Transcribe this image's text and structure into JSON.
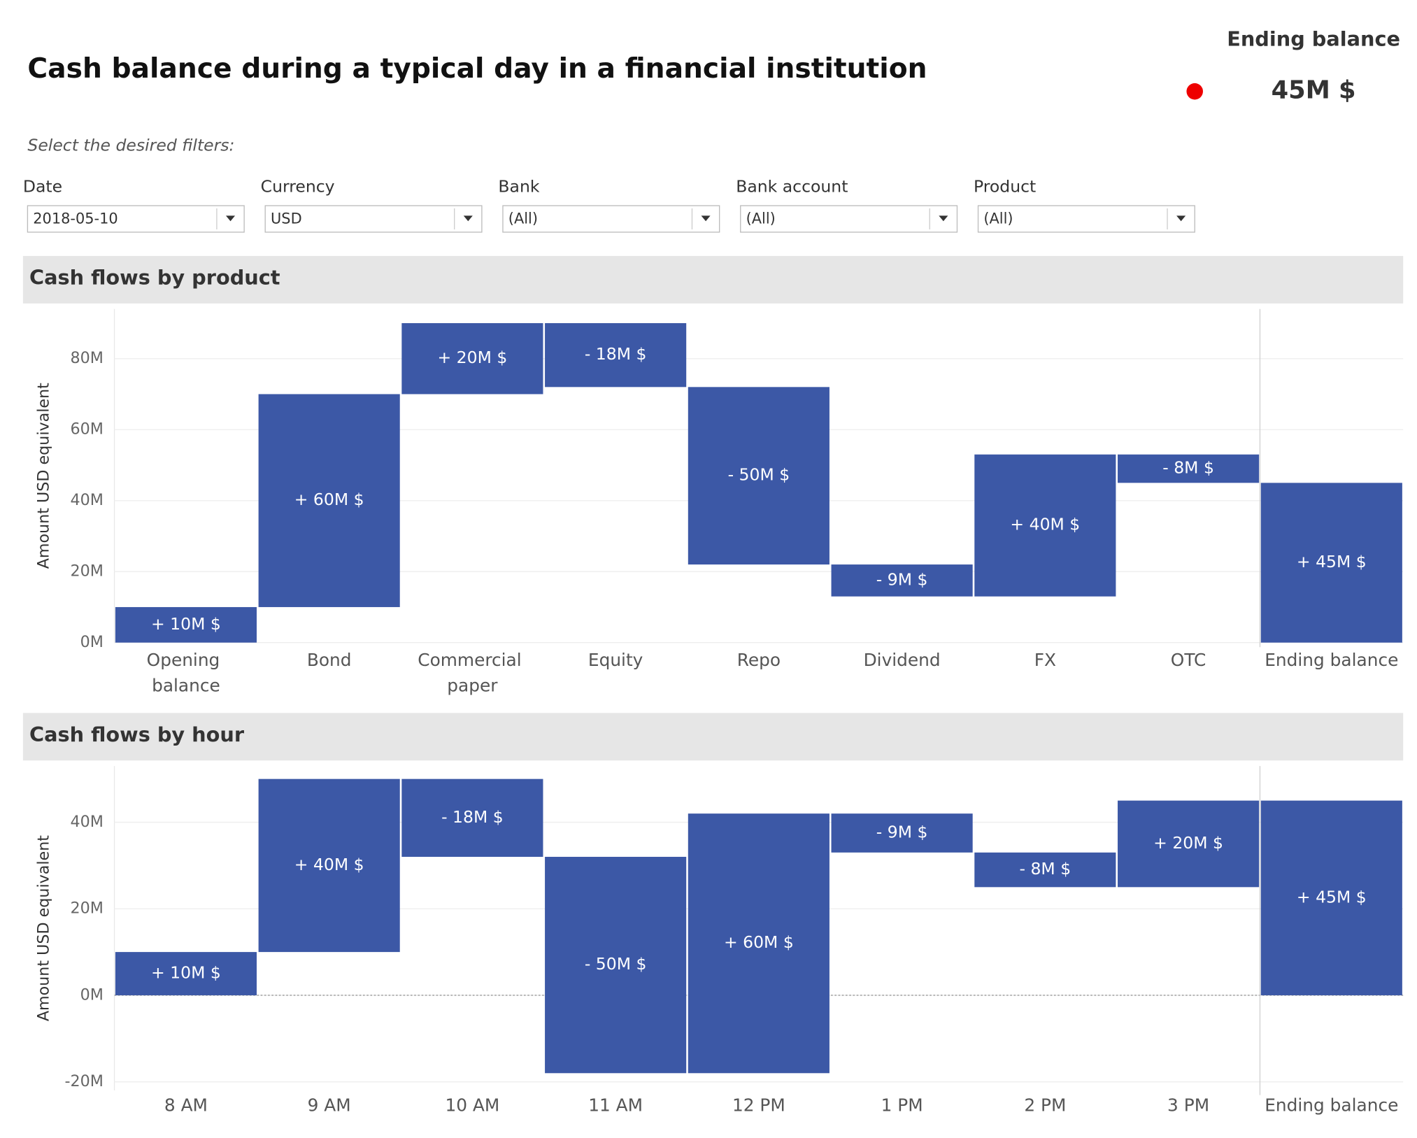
{
  "title": "Cash balance during a typical day in a financial institution",
  "kpi": {
    "label": "Ending balance",
    "value": "45M $"
  },
  "filters": {
    "prompt": "Select the desired filters:",
    "items": [
      {
        "label": "Date",
        "value": "2018-05-10"
      },
      {
        "label": "Currency",
        "value": "USD"
      },
      {
        "label": "Bank",
        "value": "(All)"
      },
      {
        "label": "Bank account",
        "value": "(All)"
      },
      {
        "label": "Product",
        "value": "(All)"
      }
    ]
  },
  "chart_data": [
    {
      "type": "waterfall",
      "title": "Cash flows by product",
      "y_label": "Amount USD equivalent",
      "categories": [
        "Opening balance",
        "Bond",
        "Commercial paper",
        "Equity",
        "Repo",
        "Dividend",
        "FX",
        "OTC",
        "Ending balance"
      ],
      "values": [
        10,
        60,
        20,
        -18,
        -50,
        -9,
        40,
        -8,
        45
      ],
      "value_labels": [
        "+ 10M $",
        "+ 60M $",
        "+ 20M $",
        "- 18M $",
        "- 50M $",
        "- 9M $",
        "+ 40M $",
        "- 8M $",
        "+ 45M $"
      ],
      "totals": [
        false,
        false,
        false,
        false,
        false,
        false,
        false,
        false,
        true
      ],
      "color": "#3c58a6",
      "ylim": [
        0,
        94
      ],
      "yticks": [
        {
          "value": 0,
          "label": "0M"
        },
        {
          "value": 20,
          "label": "20M"
        },
        {
          "value": 40,
          "label": "40M"
        },
        {
          "value": 60,
          "label": "60M"
        },
        {
          "value": 80,
          "label": "80M"
        }
      ],
      "grid": true
    },
    {
      "type": "waterfall",
      "title": "Cash flows by hour",
      "y_label": "Amount USD equivalent",
      "categories": [
        "8 AM",
        "9 AM",
        "10 AM",
        "11 AM",
        "12 PM",
        "1 PM",
        "2 PM",
        "3 PM",
        "Ending balance"
      ],
      "values": [
        10,
        40,
        -18,
        -50,
        60,
        -9,
        -8,
        20,
        45
      ],
      "value_labels": [
        "+ 10M $",
        "+ 40M $",
        "- 18M $",
        "- 50M $",
        "+ 60M $",
        "- 9M $",
        "- 8M $",
        "+ 20M $",
        "+ 45M $"
      ],
      "totals": [
        false,
        false,
        false,
        false,
        false,
        false,
        false,
        false,
        true
      ],
      "color": "#3c58a6",
      "ylim": [
        -22,
        53
      ],
      "yticks": [
        {
          "value": -20,
          "label": "-20M"
        },
        {
          "value": 0,
          "label": "0M"
        },
        {
          "value": 20,
          "label": "20M"
        },
        {
          "value": 40,
          "label": "40M"
        }
      ],
      "grid": true
    }
  ]
}
